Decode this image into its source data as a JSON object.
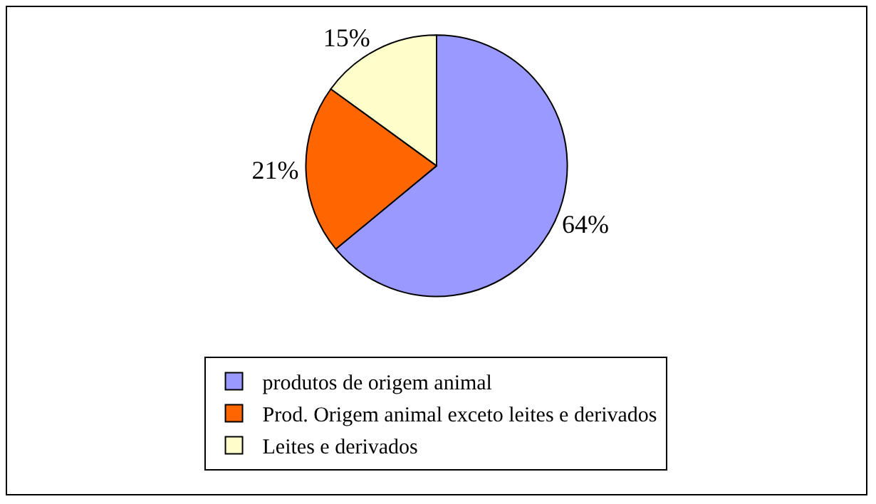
{
  "chart_data": {
    "type": "pie",
    "categories": [
      "produtos de origem animal",
      "Prod. Origem animal exceto leites e derivados",
      "Leites e derivados"
    ],
    "values": [
      64,
      21,
      15
    ],
    "colors": [
      "#9999ff",
      "#ff6600",
      "#ffffcc"
    ],
    "value_labels": [
      "64%",
      "21%",
      "15%"
    ],
    "legend": "bottom"
  }
}
